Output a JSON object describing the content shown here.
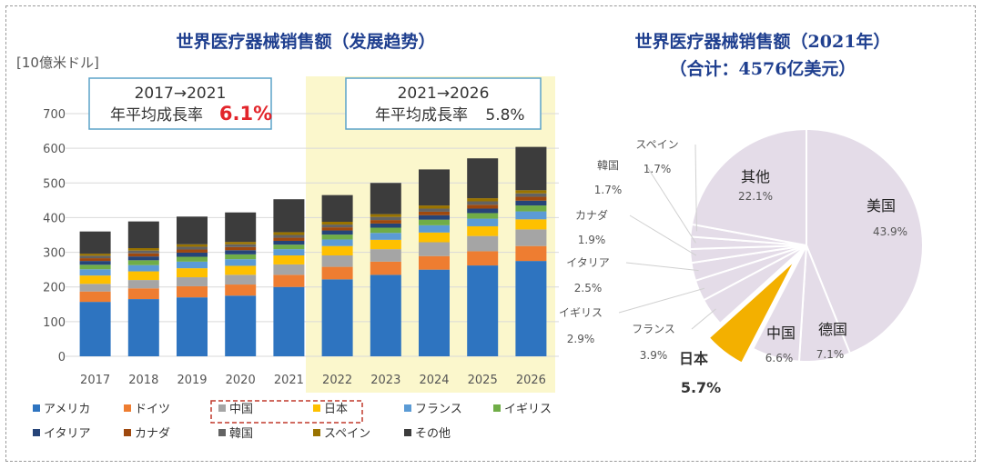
{
  "chart_data": [
    {
      "type": "bar",
      "stacked": true,
      "title": "世界医疗器械销售额（发展趋势）",
      "unit_label": "[10億米ドル]",
      "categories": [
        "2017",
        "2018",
        "2019",
        "2020",
        "2021",
        "2022",
        "2023",
        "2024",
        "2025",
        "2026"
      ],
      "ylim": [
        0,
        700
      ],
      "yticks": [
        "0",
        "100",
        "200",
        "300",
        "400",
        "500",
        "600",
        "700"
      ],
      "highlight_range": [
        "2022",
        "2026"
      ],
      "series": [
        {
          "name": "アメリカ",
          "color": "#2e74c0",
          "values": [
            157,
            165,
            170,
            175,
            200,
            222,
            235,
            250,
            262,
            275
          ]
        },
        {
          "name": "ドイツ",
          "color": "#ee7d31",
          "values": [
            30,
            31,
            32,
            32,
            35,
            36,
            38,
            39,
            41,
            43
          ]
        },
        {
          "name": "中国",
          "color": "#a5a5a5",
          "values": [
            22,
            24,
            26,
            28,
            30,
            33,
            36,
            40,
            44,
            48
          ]
        },
        {
          "name": "日本",
          "color": "#fec000",
          "values": [
            24,
            25,
            26,
            26,
            26,
            27,
            27,
            28,
            28,
            29
          ]
        },
        {
          "name": "フランス",
          "color": "#5b9bd5",
          "values": [
            18,
            18,
            19,
            19,
            18,
            19,
            20,
            21,
            22,
            23
          ]
        },
        {
          "name": "イギリス",
          "color": "#70ad47",
          "values": [
            13,
            14,
            14,
            14,
            13,
            14,
            15,
            16,
            16,
            17
          ]
        },
        {
          "name": "イタリア",
          "color": "#264478",
          "values": [
            11,
            11,
            12,
            12,
            11,
            12,
            12,
            13,
            13,
            14
          ]
        },
        {
          "name": "カナダ",
          "color": "#9e480e",
          "values": [
            8,
            9,
            9,
            9,
            9,
            9,
            10,
            10,
            11,
            11
          ]
        },
        {
          "name": "韓国",
          "color": "#636363",
          "values": [
            7,
            8,
            8,
            8,
            8,
            8,
            9,
            9,
            10,
            10
          ]
        },
        {
          "name": "スペイン",
          "color": "#997300",
          "values": [
            6,
            7,
            7,
            7,
            8,
            8,
            8,
            9,
            9,
            9
          ]
        },
        {
          "name": "その他",
          "color": "#3c3c3c",
          "values": [
            64,
            77,
            80,
            85,
            95,
            77,
            90,
            104,
            115,
            125
          ]
        }
      ],
      "annotations": [
        {
          "period": "2017→2021",
          "label": "年平均成長率",
          "value": "6.1%",
          "value_color": "#e2252b"
        },
        {
          "period": "2021→2026",
          "label": "年平均成長率",
          "value": "5.8%",
          "value_color": "#333333"
        }
      ],
      "legend_highlighted": [
        "中国",
        "日本"
      ]
    },
    {
      "type": "pie",
      "title": "世界医疗器械销售额（2021年）",
      "subtitle": "（合计：4576亿美元）",
      "slices": [
        {
          "label": "美国",
          "value": 43.9,
          "display": "43.9%",
          "color": "#e4dce8"
        },
        {
          "label": "德国",
          "value": 7.1,
          "display": "7.1%",
          "color": "#e4dce8"
        },
        {
          "label": "中国",
          "value": 6.6,
          "display": "6.6%",
          "color": "#e4dce8"
        },
        {
          "label": "日本",
          "value": 5.7,
          "display": "5.7%",
          "color": "#f3b000",
          "exploded": true
        },
        {
          "label": "フランス",
          "value": 3.9,
          "display": "3.9%",
          "color": "#e4dce8"
        },
        {
          "label": "イギリス",
          "value": 2.9,
          "display": "2.9%",
          "color": "#e4dce8"
        },
        {
          "label": "イタリア",
          "value": 2.5,
          "display": "2.5%",
          "color": "#e4dce8"
        },
        {
          "label": "カナダ",
          "value": 1.9,
          "display": "1.9%",
          "color": "#e4dce8"
        },
        {
          "label": "韓国",
          "value": 1.7,
          "display": "1.7%",
          "color": "#e4dce8"
        },
        {
          "label": "スペイン",
          "value": 1.7,
          "display": "1.7%",
          "color": "#e4dce8"
        },
        {
          "label": "其他",
          "value": 22.1,
          "display": "22.1%",
          "color": "#e4dce8"
        }
      ]
    }
  ]
}
